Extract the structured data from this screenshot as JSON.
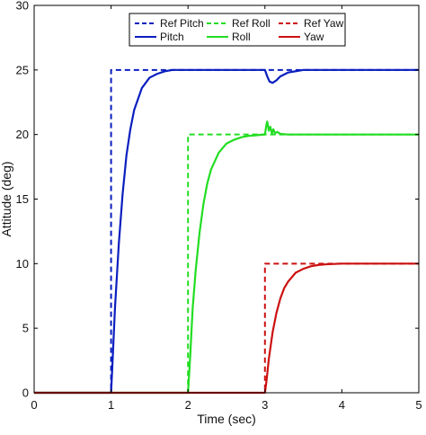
{
  "chart_data": {
    "type": "line",
    "title": "",
    "xlabel": "Time (sec)",
    "ylabel": "Attitude (deg)",
    "xlim": [
      0,
      5
    ],
    "ylim": [
      0,
      30
    ],
    "xticks": [
      0,
      1,
      2,
      3,
      4,
      5
    ],
    "yticks": [
      0,
      5,
      10,
      15,
      20,
      25,
      30
    ],
    "grid": false,
    "legend": {
      "placement": "top",
      "columns": 3,
      "entries": [
        "Ref Pitch",
        "Ref Roll",
        "Ref Yaw",
        "Pitch",
        "Roll",
        "Yaw"
      ]
    },
    "colors": {
      "pitch": "#0a1fbf",
      "roll": "#22dd22",
      "yaw": "#cc1111",
      "axis": "#000000"
    },
    "series": [
      {
        "name": "Ref Pitch",
        "style": "dashed",
        "color": "#0a1fbf",
        "x": [
          0,
          1,
          1,
          5
        ],
        "y": [
          0,
          0,
          25,
          25
        ]
      },
      {
        "name": "Ref Roll",
        "style": "dashed",
        "color": "#22dd22",
        "x": [
          0,
          2,
          2,
          5
        ],
        "y": [
          0,
          0,
          20,
          20
        ]
      },
      {
        "name": "Ref Yaw",
        "style": "dashed",
        "color": "#cc1111",
        "x": [
          0,
          3,
          3,
          5
        ],
        "y": [
          0,
          0,
          10,
          10
        ]
      },
      {
        "name": "Pitch",
        "style": "solid",
        "color": "#0a1fbf",
        "x": [
          0,
          1,
          1.02,
          1.05,
          1.1,
          1.15,
          1.2,
          1.25,
          1.3,
          1.4,
          1.5,
          1.6,
          1.7,
          1.8,
          2,
          2.5,
          3,
          3.03,
          3.06,
          3.1,
          3.15,
          3.2,
          3.3,
          3.4,
          3.5,
          3.7,
          4,
          4.5,
          5
        ],
        "y": [
          0,
          0,
          2.5,
          6.5,
          11.5,
          15.4,
          18.4,
          20.4,
          21.9,
          23.6,
          24.4,
          24.7,
          24.9,
          25,
          25,
          25,
          25,
          24.5,
          24.1,
          24.0,
          24.2,
          24.5,
          24.8,
          24.9,
          25,
          25,
          25,
          25,
          25
        ]
      },
      {
        "name": "Roll",
        "style": "solid",
        "color": "#22dd22",
        "x": [
          0,
          2,
          2.03,
          2.06,
          2.1,
          2.15,
          2.2,
          2.25,
          2.3,
          2.4,
          2.5,
          2.6,
          2.7,
          2.8,
          2.9,
          3,
          3.02,
          3.03,
          3.05,
          3.07,
          3.09,
          3.11,
          3.13,
          3.16,
          3.2,
          3.3,
          3.5,
          4,
          5
        ],
        "y": [
          0,
          0,
          3.0,
          6.5,
          9.5,
          12.4,
          14.6,
          16.2,
          17.3,
          18.6,
          19.3,
          19.6,
          19.8,
          19.9,
          19.95,
          20,
          20.8,
          21.0,
          20.3,
          20.6,
          20.1,
          20.4,
          20.1,
          20.2,
          20.05,
          20,
          20,
          20,
          20
        ]
      },
      {
        "name": "Yaw",
        "style": "solid",
        "color": "#cc1111",
        "x": [
          0,
          3,
          3.02,
          3.05,
          3.1,
          3.15,
          3.2,
          3.25,
          3.3,
          3.4,
          3.5,
          3.6,
          3.7,
          3.8,
          4,
          4.5,
          5
        ],
        "y": [
          0,
          0,
          0.9,
          2.6,
          4.7,
          6.2,
          7.3,
          8.1,
          8.6,
          9.3,
          9.6,
          9.8,
          9.9,
          9.95,
          10,
          10,
          10
        ]
      }
    ]
  }
}
